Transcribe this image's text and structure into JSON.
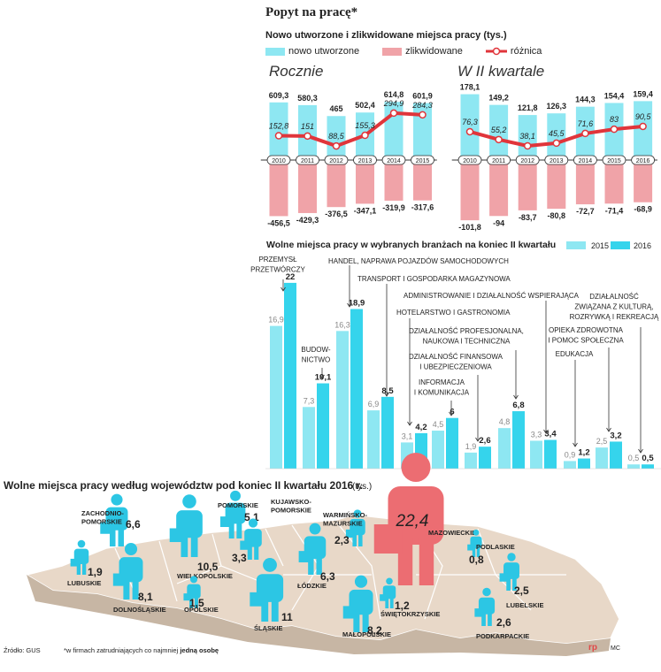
{
  "header": {
    "title": "Popyt na pracę*",
    "subtitle": "Nowo utworzone i zlikwidowane miejsca pracy (tys.)",
    "legend": {
      "created": "nowo utworzone",
      "liquidated": "zlikwidowane",
      "difference": "różnica"
    }
  },
  "colors": {
    "cyan": "#8ee7f2",
    "cyan_dark": "#35d4ec",
    "pink": "#f0a3a8",
    "red": "#e0353b",
    "map": "#e8d8c8",
    "person_cyan": "#2cc6e4",
    "person_red": "#ec6d72"
  },
  "chart_data": [
    {
      "type": "bar",
      "title": "Rocznie",
      "categories": [
        "2010",
        "2011",
        "2012",
        "2013",
        "2014",
        "2015"
      ],
      "series": [
        {
          "name": "nowo utworzone",
          "values": [
            609.3,
            580.3,
            465,
            502.4,
            614.8,
            601.9
          ],
          "labels": [
            "609,3",
            "580,3",
            "465",
            "502,4",
            "614,8",
            "601,9"
          ]
        },
        {
          "name": "zlikwidowane",
          "values": [
            -456.5,
            -429.3,
            -376.5,
            -347.1,
            -319.9,
            -317.6
          ],
          "labels": [
            "-456,5",
            "-429,3",
            "-376,5",
            "-347,1",
            "-319,9",
            "-317,6"
          ]
        },
        {
          "name": "różnica",
          "values": [
            152.8,
            151,
            88.5,
            155.3,
            294.9,
            284.3
          ],
          "labels": [
            "152,8",
            "151",
            "88,5",
            "155,3",
            "294,9",
            "284,3"
          ]
        }
      ]
    },
    {
      "type": "bar",
      "title": "W II kwartale",
      "categories": [
        "2010",
        "2011",
        "2012",
        "2013",
        "2014",
        "2015",
        "2016"
      ],
      "series": [
        {
          "name": "nowo utworzone",
          "values": [
            178.1,
            149.2,
            121.8,
            126.3,
            144.3,
            154.4,
            159.4
          ],
          "labels": [
            "178,1",
            "149,2",
            "121,8",
            "126,3",
            "144,3",
            "154,4",
            "159,4"
          ]
        },
        {
          "name": "zlikwidowane",
          "values": [
            -101.8,
            -94,
            -83.7,
            -80.8,
            -72.7,
            -71.4,
            -68.9
          ],
          "labels": [
            "-101,8",
            "-94",
            "-83,7",
            "-80,8",
            "-72,7",
            "-71,4",
            "-68,9"
          ]
        },
        {
          "name": "różnica",
          "values": [
            76.3,
            55.2,
            38.1,
            45.5,
            71.6,
            83,
            90.5
          ],
          "labels": [
            "76,3",
            "55,2",
            "38,1",
            "45,5",
            "71,6",
            "83",
            "90,5"
          ]
        }
      ]
    },
    {
      "type": "bar",
      "title": "Wolne miejsca pracy w wybranych branżach na koniec II kwartału",
      "legend": [
        "2015",
        "2016"
      ],
      "categories": [
        [
          "PRZEMYSŁ",
          "PRZETWÓRCZY"
        ],
        [
          "BUDOW-",
          "NICTWO"
        ],
        [
          "HANDEL, NAPRAWA POJAZDÓW SAMOCHODOWYCH"
        ],
        [
          "TRANSPORT I GOSPODARKA MAGAZYNOWA"
        ],
        [
          "HOTELARSTWO I GASTRONOMIA"
        ],
        [
          "INFORMACJA",
          "I KOMUNIKACJA"
        ],
        [
          "DZIAŁALNOŚĆ FINANSOWA",
          "I UBEZPIECZENIOWA"
        ],
        [
          "DZIAŁALNOŚĆ PROFESJONALNA,",
          "NAUKOWA I TECHNICZNA"
        ],
        [
          "ADMINISTROWANIE I DZIAŁALNOŚĆ WSPIERAJĄCA"
        ],
        [
          "EDUKACJA"
        ],
        [
          "OPIEKA ZDROWOTNA",
          "I POMOC SPOŁECZNA"
        ],
        [
          "DZIAŁALNOŚĆ",
          "ZWIĄZANA Z KULTURĄ,",
          "ROZRYWKĄ I REKREACJĄ"
        ]
      ],
      "series": [
        {
          "name": "2015",
          "values": [
            16.9,
            7.3,
            16.3,
            6.9,
            3.1,
            4.5,
            1.9,
            4.8,
            3.3,
            0.9,
            2.5,
            0.5
          ],
          "labels": [
            "16,9",
            "7,3",
            "16,3",
            "6,9",
            "3,1",
            "4,5",
            "1,9",
            "4,8",
            "3,3",
            "0,9",
            "2,5",
            "0,5"
          ]
        },
        {
          "name": "2016",
          "values": [
            22,
            10.1,
            18.9,
            8.5,
            4.2,
            6,
            2.6,
            6.8,
            3.4,
            1.2,
            3.2,
            0.5
          ],
          "labels": [
            "22",
            "10,1",
            "18,9",
            "8,5",
            "4,2",
            "6",
            "2,6",
            "6,8",
            "3,4",
            "1,2",
            "3,2",
            "0,5"
          ]
        }
      ]
    },
    {
      "type": "map",
      "title": "Wolne miejsca pracy według województw pod koniec II kwartału 2016 r.",
      "unit": "(tys.)",
      "regions": [
        {
          "name": [
            "ZACHODNIO-",
            "POMORSKIE"
          ],
          "value": 6.6,
          "label": "6,6"
        },
        {
          "name": [
            "POMORSKIE"
          ],
          "value": 5.1,
          "label": "5,1"
        },
        {
          "name": [
            "KUJAWSKO-",
            "POMORSKIE"
          ],
          "value": 3.3,
          "label": "3,3"
        },
        {
          "name": [
            "WARMIŃSKO-",
            "MAZURSKIE"
          ],
          "value": 2.3,
          "label": "2,3"
        },
        {
          "name": [
            "MAZOWIECKIE"
          ],
          "value": 22.4,
          "label": "22,4"
        },
        {
          "name": [
            "PODLASKIE"
          ],
          "value": 0.8,
          "label": "0,8"
        },
        {
          "name": [
            "LUBUSKIE"
          ],
          "value": 1.9,
          "label": "1,9"
        },
        {
          "name": [
            "WIELKOPOLSKIE"
          ],
          "value": 10.5,
          "label": "10,5"
        },
        {
          "name": [
            "ŁÓDZKIE"
          ],
          "value": 6.3,
          "label": "6,3"
        },
        {
          "name": [
            "DOLNOŚLĄSKIE"
          ],
          "value": 8.1,
          "label": "8,1"
        },
        {
          "name": [
            "OPOLSKIE"
          ],
          "value": 1.5,
          "label": "1,5"
        },
        {
          "name": [
            "ŚLĄSKIE"
          ],
          "value": 11,
          "label": "11"
        },
        {
          "name": [
            "MAŁOPOLSKIE"
          ],
          "value": 8.2,
          "label": "8,2"
        },
        {
          "name": [
            "ŚWIĘTOKRZYSKIE"
          ],
          "value": 1.2,
          "label": "1,2"
        },
        {
          "name": [
            "LUBELSKIE"
          ],
          "value": 2.5,
          "label": "2,5"
        },
        {
          "name": [
            "PODKARPACKIE"
          ],
          "value": 2.6,
          "label": "2,6"
        }
      ]
    }
  ],
  "footer": {
    "source": "Źródło: GUS",
    "footnote_pre": "*w firmach zatrudniających co najmniej ",
    "footnote_bold": "jedną osobę",
    "brand": "rp",
    "author": "MC"
  }
}
